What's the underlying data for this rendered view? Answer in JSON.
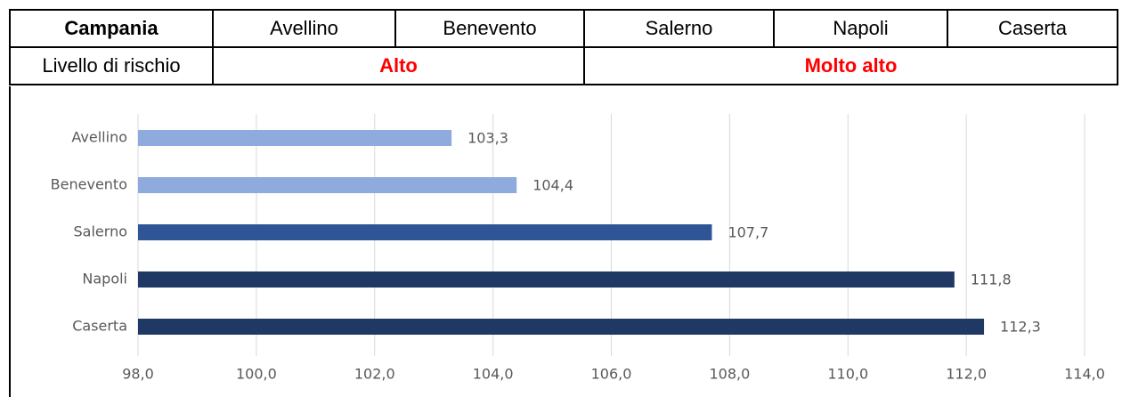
{
  "table": {
    "rows": [
      [
        "Campania",
        "Avellino",
        "Benevento",
        "Salerno",
        "Napoli",
        "Caserta"
      ],
      [
        "Livello di rischio",
        "Alto",
        "Molto alto"
      ]
    ]
  },
  "chart_data": {
    "type": "bar",
    "orientation": "horizontal",
    "categories": [
      "Avellino",
      "Benevento",
      "Salerno",
      "Napoli",
      "Caserta"
    ],
    "values": [
      103.3,
      104.4,
      107.7,
      111.8,
      112.3
    ],
    "value_labels": [
      "103,3",
      "104,4",
      "107,7",
      "111,8",
      "112,3"
    ],
    "colors": [
      "#8faadc",
      "#8faadc",
      "#2f5597",
      "#203864",
      "#203864"
    ],
    "xlim": [
      98,
      114
    ],
    "xticks": [
      {
        "value": 98,
        "label": "98,0"
      },
      {
        "value": 100,
        "label": "100,0"
      },
      {
        "value": 102,
        "label": "102,0"
      },
      {
        "value": 104,
        "label": "104,0"
      },
      {
        "value": 106,
        "label": "106,0"
      },
      {
        "value": 108,
        "label": "108,0"
      },
      {
        "value": 110,
        "label": "110,0"
      },
      {
        "value": 112,
        "label": "112,0"
      },
      {
        "value": 114,
        "label": "114,0"
      }
    ],
    "grid": true
  }
}
